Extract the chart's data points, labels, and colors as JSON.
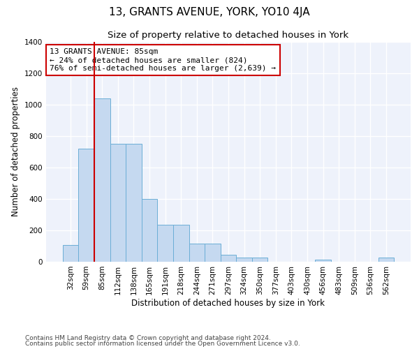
{
  "title": "13, GRANTS AVENUE, YORK, YO10 4JA",
  "subtitle": "Size of property relative to detached houses in York",
  "xlabel": "Distribution of detached houses by size in York",
  "ylabel": "Number of detached properties",
  "bar_color": "#c5d9f0",
  "bar_edge_color": "#6baed6",
  "red_line_color": "#cc0000",
  "annotation_box_color": "#cc0000",
  "background_color": "#eef2fb",
  "grid_color": "#ffffff",
  "categories": [
    "32sqm",
    "59sqm",
    "85sqm",
    "112sqm",
    "138sqm",
    "165sqm",
    "191sqm",
    "218sqm",
    "244sqm",
    "271sqm",
    "297sqm",
    "324sqm",
    "350sqm",
    "377sqm",
    "403sqm",
    "430sqm",
    "456sqm",
    "483sqm",
    "509sqm",
    "536sqm",
    "562sqm"
  ],
  "values": [
    105,
    720,
    1040,
    750,
    750,
    400,
    235,
    235,
    115,
    115,
    45,
    25,
    25,
    0,
    0,
    0,
    15,
    0,
    0,
    0,
    25
  ],
  "red_line_x": 1.5,
  "ylim": [
    0,
    1400
  ],
  "yticks": [
    0,
    200,
    400,
    600,
    800,
    1000,
    1200,
    1400
  ],
  "annotation_line1": "13 GRANTS AVENUE: 85sqm",
  "annotation_line2": "← 24% of detached houses are smaller (824)",
  "annotation_line3": "76% of semi-detached houses are larger (2,639) →",
  "footer_line1": "Contains HM Land Registry data © Crown copyright and database right 2024.",
  "footer_line2": "Contains public sector information licensed under the Open Government Licence v3.0.",
  "title_fontsize": 11,
  "subtitle_fontsize": 9.5,
  "axis_label_fontsize": 8.5,
  "tick_fontsize": 7.5,
  "annotation_fontsize": 8,
  "footer_fontsize": 6.5
}
